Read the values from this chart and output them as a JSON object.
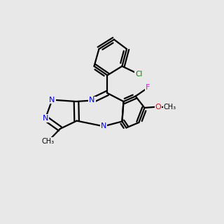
{
  "bg_color": "#e8e8e8",
  "bond_color": "#000000",
  "n_color": "#0000ff",
  "o_color": "#ff0000",
  "f_color": "#ff00ff",
  "cl_color": "#008000",
  "title": "5-(2-Chlorophenyl)-7-fluoro-8-methoxy-3-methylpyrazolo[3,4-b][1,4]benzodiazepine",
  "formula": "C18H12ClFN4O",
  "id": "B12352912"
}
